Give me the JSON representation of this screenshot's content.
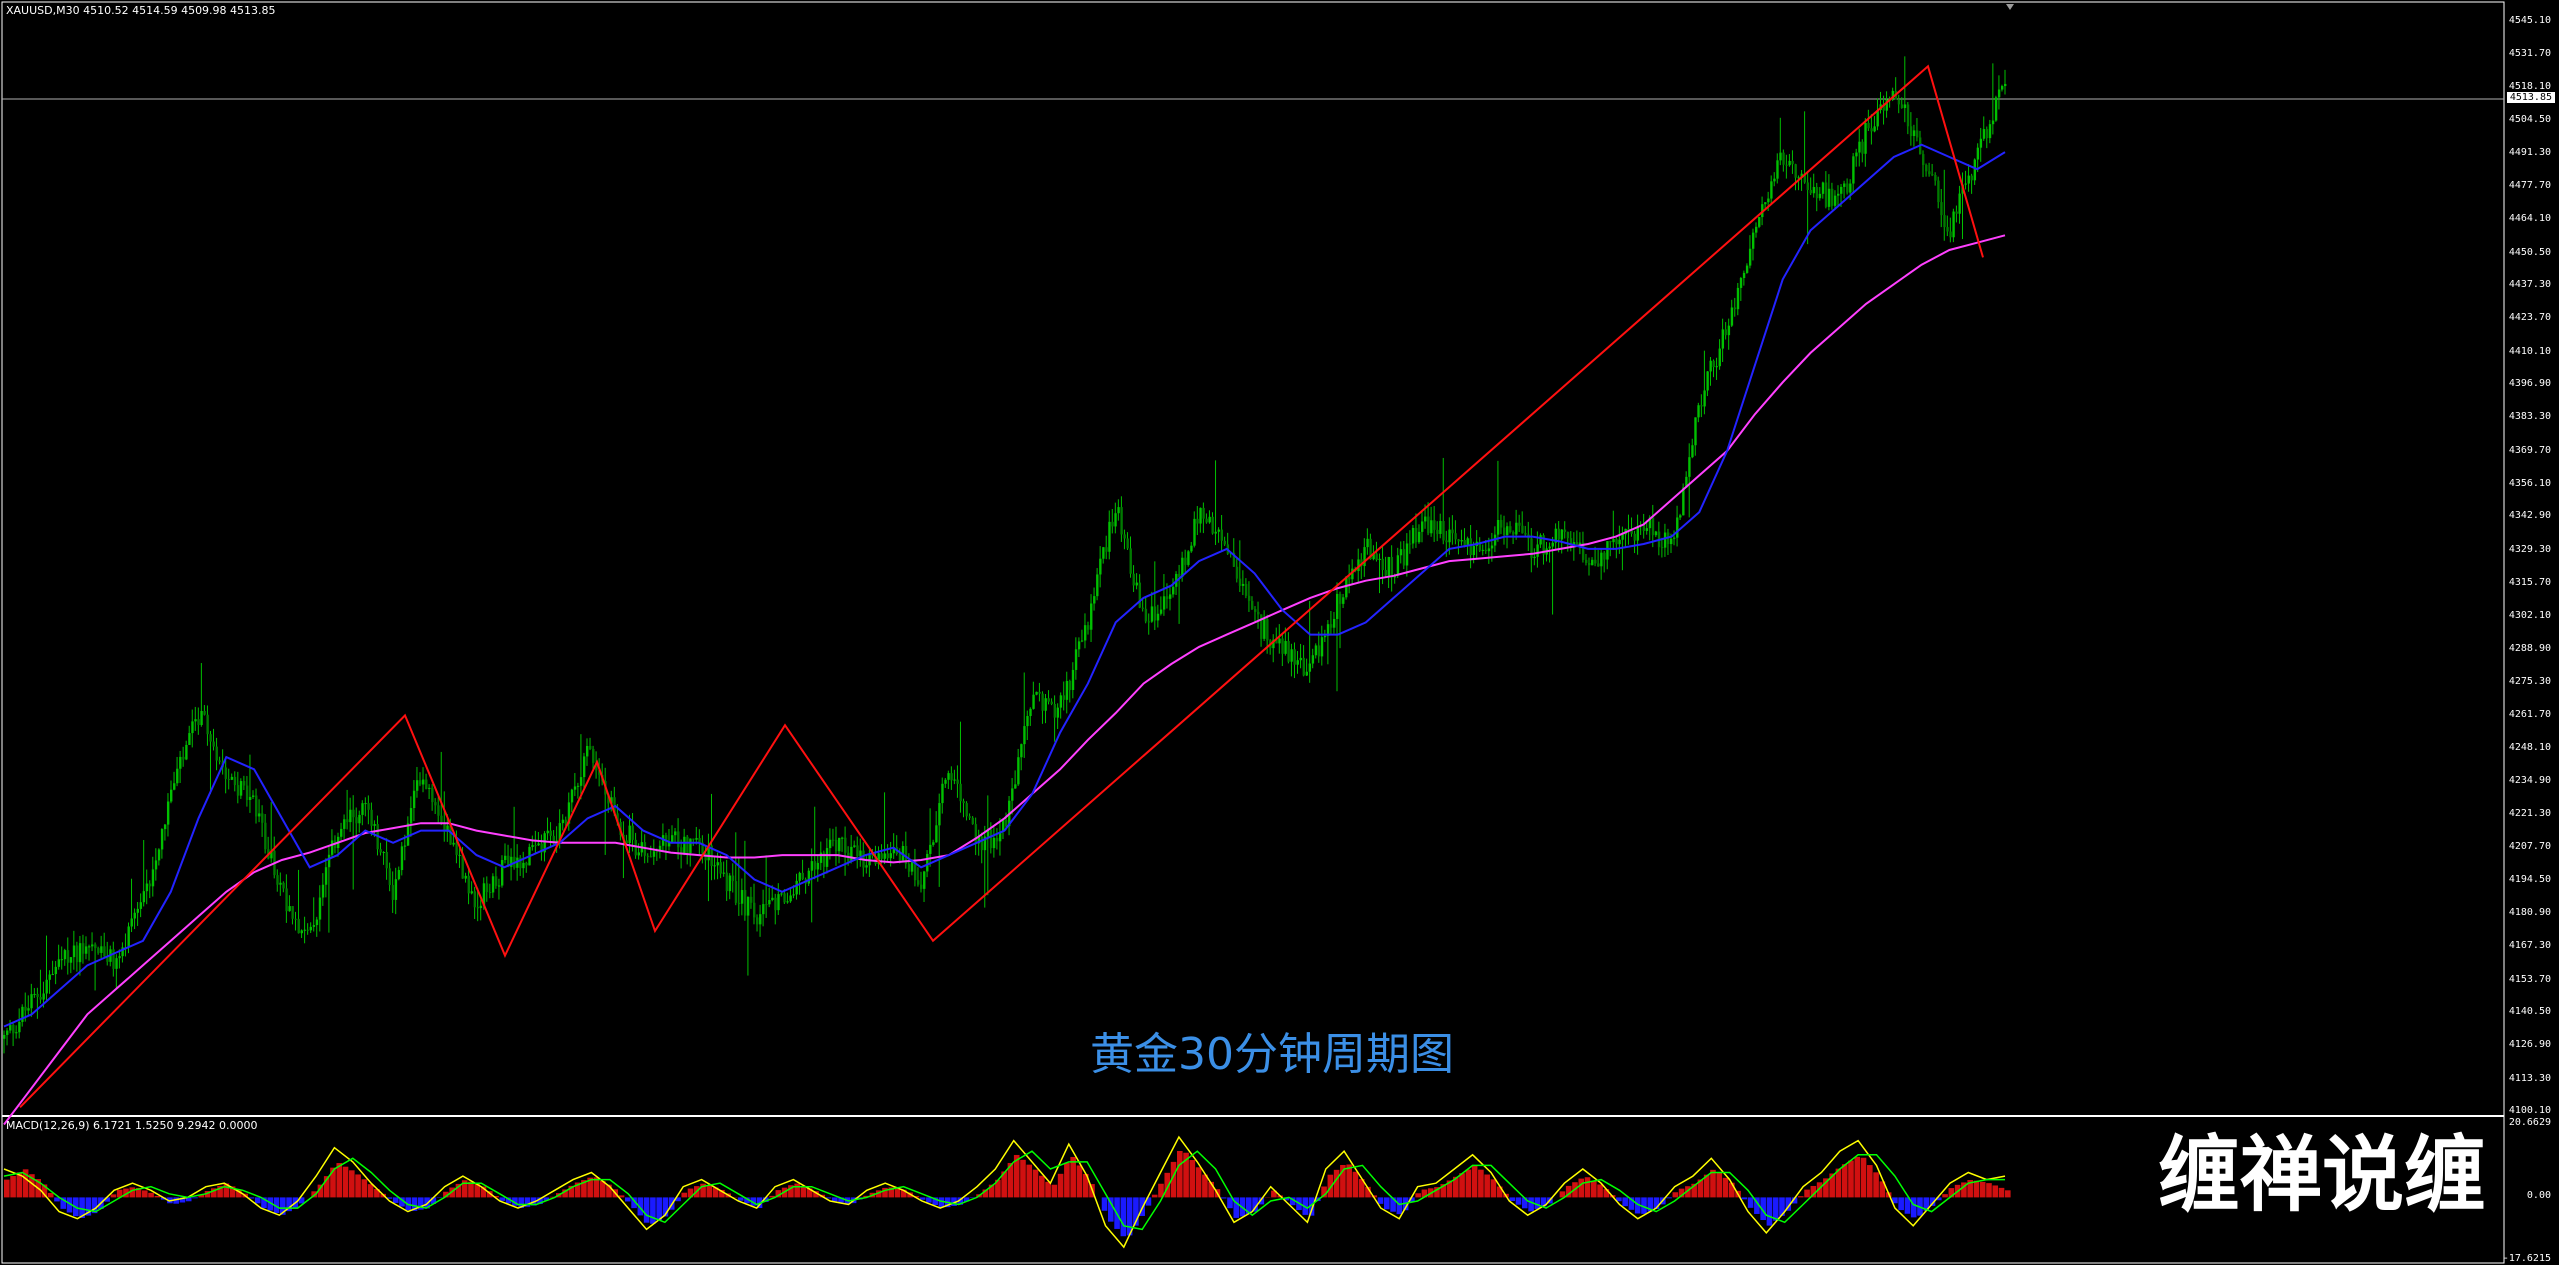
{
  "window": {
    "symbol_header": "XAUUSD,M30  4510.52 4514.59 4509.98 4513.85"
  },
  "price_axis": {
    "labels": [
      "4545.10",
      "4531.70",
      "4518.10",
      "4504.50",
      "4491.30",
      "4477.70",
      "4464.10",
      "4450.50",
      "4437.30",
      "4423.70",
      "4410.10",
      "4396.90",
      "4383.30",
      "4369.70",
      "4356.10",
      "4342.90",
      "4329.30",
      "4315.70",
      "4302.10",
      "4288.90",
      "4275.30",
      "4261.70",
      "4248.10",
      "4234.90",
      "4221.30",
      "4207.70",
      "4194.50",
      "4180.90",
      "4167.30",
      "4153.70",
      "4140.50",
      "4126.90",
      "4113.30",
      "4100.10"
    ],
    "current_price": "4513.85"
  },
  "caption": "黄金30分钟周期图",
  "watermark": "缠禅说缠",
  "macd": {
    "header": "MACD(12,26,9) 6.1721 1.5250 9.2942 0.0000",
    "axis_labels": [
      "20.6629",
      "0.00",
      "-17.6215"
    ]
  },
  "colors": {
    "background": "#000000",
    "candle": "#00c000",
    "fast_ma": "#2323ff",
    "slow_ma": "#ff40ff",
    "zigzag": "#ff1010",
    "macd_pos": "#d01010",
    "macd_neg": "#1a1aff",
    "macd_line": "#ffff00",
    "macd_signal": "#00ff00",
    "axis": "#ffffff",
    "caption": "#3b8fe6"
  },
  "chart_data": {
    "type": "line",
    "ylim": [
      4100.1,
      4545.1
    ],
    "zigzag_pivots": [
      4102,
      4262,
      4164,
      4243,
      4174,
      4258,
      4170,
      4527,
      4449
    ],
    "price_path": [
      4130,
      4145,
      4160,
      4170,
      4160,
      4185,
      4230,
      4262,
      4240,
      4225,
      4190,
      4170,
      4215,
      4225,
      4190,
      4240,
      4215,
      4185,
      4200,
      4205,
      4215,
      4250,
      4220,
      4205,
      4210,
      4210,
      4195,
      4180,
      4185,
      4200,
      4210,
      4200,
      4210,
      4195,
      4240,
      4210,
      4215,
      4270,
      4265,
      4300,
      4350,
      4300,
      4310,
      4345,
      4330,
      4300,
      4290,
      4280,
      4310,
      4330,
      4320,
      4340,
      4335,
      4330,
      4340,
      4330,
      4335,
      4325,
      4330,
      4340,
      4330,
      4390,
      4420,
      4460,
      4490,
      4480,
      4470,
      4500,
      4520,
      4490,
      4460,
      4490,
      4520
    ],
    "fast_ma": [
      4135,
      4140,
      4150,
      4160,
      4165,
      4170,
      4190,
      4220,
      4245,
      4240,
      4220,
      4200,
      4205,
      4215,
      4210,
      4215,
      4215,
      4205,
      4200,
      4205,
      4210,
      4220,
      4225,
      4215,
      4210,
      4210,
      4205,
      4195,
      4190,
      4195,
      4200,
      4205,
      4208,
      4200,
      4205,
      4210,
      4215,
      4230,
      4255,
      4275,
      4300,
      4310,
      4315,
      4325,
      4330,
      4320,
      4305,
      4295,
      4295,
      4300,
      4310,
      4320,
      4330,
      4332,
      4335,
      4335,
      4333,
      4330,
      4330,
      4332,
      4335,
      4345,
      4370,
      4405,
      4440,
      4460,
      4470,
      4480,
      4490,
      4495,
      4490,
      4485,
      4492
    ],
    "slow_ma": [
      4095,
      4110,
      4125,
      4140,
      4150,
      4160,
      4170,
      4180,
      4190,
      4198,
      4203,
      4206,
      4210,
      4214,
      4216,
      4218,
      4218,
      4215,
      4213,
      4211,
      4210,
      4210,
      4210,
      4208,
      4206,
      4205,
      4204,
      4204,
      4205,
      4205,
      4205,
      4203,
      4202,
      4203,
      4205,
      4212,
      4220,
      4230,
      4240,
      4252,
      4263,
      4275,
      4283,
      4290,
      4295,
      4300,
      4305,
      4310,
      4314,
      4317,
      4319,
      4322,
      4325,
      4326,
      4327,
      4328,
      4330,
      4332,
      4335,
      4340,
      4350,
      4360,
      4370,
      4385,
      4398,
      4410,
      4420,
      4430,
      4438,
      4446,
      4452,
      4455,
      4458
    ],
    "macd_hist": [
      5,
      8,
      4,
      -3,
      -6,
      -4,
      2,
      3,
      1,
      -2,
      -1,
      2,
      4,
      1,
      -3,
      -5,
      -2,
      3,
      10,
      7,
      3,
      -1,
      -4,
      -3,
      2,
      5,
      3,
      -1,
      -3,
      -2,
      1,
      4,
      6,
      3,
      -2,
      -8,
      -5,
      2,
      4,
      2,
      -1,
      -3,
      2,
      4,
      2,
      -1,
      -2,
      1,
      3,
      2,
      -1,
      -3,
      -2,
      1,
      5,
      12,
      8,
      3,
      12,
      5,
      -6,
      -12,
      -4,
      5,
      14,
      8,
      2,
      -6,
      -4,
      2,
      -2,
      -6,
      6,
      10,
      4,
      -3,
      -5,
      2,
      3,
      6,
      9,
      5,
      -1,
      -4,
      -2,
      3,
      6,
      3,
      -2,
      -5,
      -3,
      2,
      4,
      8,
      4,
      -3,
      -8,
      -4,
      2,
      5,
      9,
      12,
      6,
      -3,
      -6,
      -2,
      3,
      5,
      4,
      2
    ],
    "macd_line": [
      8,
      6,
      2,
      -4,
      -6,
      -3,
      2,
      4,
      2,
      -1,
      0,
      3,
      4,
      1,
      -3,
      -5,
      -1,
      6,
      14,
      10,
      4,
      -1,
      -4,
      -2,
      3,
      6,
      3,
      -1,
      -3,
      -1,
      2,
      5,
      7,
      3,
      -3,
      -9,
      -5,
      3,
      5,
      2,
      -1,
      -3,
      3,
      5,
      2,
      -1,
      -2,
      2,
      4,
      2,
      -1,
      -3,
      -1,
      3,
      8,
      16,
      10,
      4,
      15,
      6,
      -8,
      -14,
      -3,
      7,
      17,
      10,
      2,
      -7,
      -4,
      3,
      -2,
      -7,
      8,
      13,
      5,
      -3,
      -6,
      3,
      4,
      8,
      12,
      7,
      -1,
      -5,
      -2,
      4,
      8,
      4,
      -2,
      -6,
      -3,
      3,
      6,
      11,
      5,
      -4,
      -10,
      -4,
      3,
      7,
      13,
      16,
      9,
      -3,
      -8,
      -2,
      4,
      7,
      5,
      6
    ],
    "macd_signal": [
      6,
      7,
      4,
      0,
      -3,
      -4,
      -1,
      2,
      3,
      1,
      0,
      1,
      3,
      2,
      0,
      -3,
      -3,
      1,
      8,
      11,
      7,
      2,
      -2,
      -3,
      0,
      4,
      4,
      1,
      -2,
      -2,
      0,
      3,
      5,
      5,
      1,
      -5,
      -7,
      -2,
      3,
      4,
      1,
      -2,
      0,
      3,
      3,
      1,
      -1,
      0,
      2,
      3,
      1,
      -1,
      -2,
      0,
      4,
      10,
      13,
      8,
      10,
      10,
      1,
      -8,
      -9,
      -1,
      9,
      13,
      8,
      -1,
      -5,
      -1,
      0,
      -3,
      1,
      8,
      9,
      3,
      -2,
      -1,
      2,
      5,
      9,
      9,
      4,
      -1,
      -3,
      0,
      4,
      5,
      2,
      -2,
      -4,
      -1,
      3,
      7,
      7,
      2,
      -5,
      -7,
      -2,
      3,
      8,
      12,
      12,
      6,
      -2,
      -4,
      0,
      4,
      5,
      5
    ]
  }
}
